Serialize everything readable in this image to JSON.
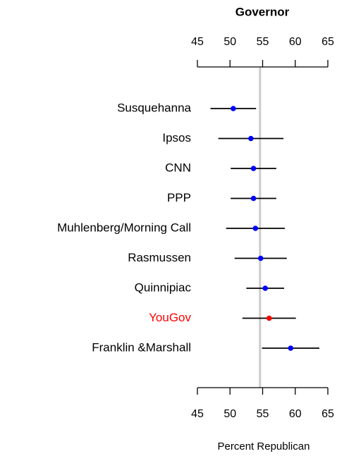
{
  "chart_data": {
    "type": "dotplot",
    "title": "Governor",
    "xlabel": "Percent Republican",
    "categories": [
      "Susquehanna",
      "Ipsos",
      "CNN",
      "PPP",
      "Muhlenberg/Morning Call",
      "Rasmussen",
      "Quinnipiac",
      "YouGov",
      "Franklin &Marshall"
    ],
    "values": [
      50.5,
      53.2,
      53.6,
      53.6,
      53.9,
      54.7,
      55.4,
      56.0,
      59.3
    ],
    "errors": [
      3.5,
      5.0,
      3.5,
      3.5,
      4.5,
      4.0,
      2.9,
      4.1,
      4.4
    ],
    "point_colors": [
      "#0000ff",
      "#0000ff",
      "#0000ff",
      "#0000ff",
      "#0000ff",
      "#0000ff",
      "#0000ff",
      "#ff0000",
      "#0000ff"
    ],
    "label_colors": [
      "#000000",
      "#000000",
      "#000000",
      "#000000",
      "#000000",
      "#000000",
      "#000000",
      "#ff0000",
      "#000000"
    ],
    "reference_line": 54.6,
    "reference_color": "#cccccc",
    "xlim": [
      45,
      65
    ],
    "xticks": [
      45,
      50,
      55,
      60,
      65
    ]
  }
}
